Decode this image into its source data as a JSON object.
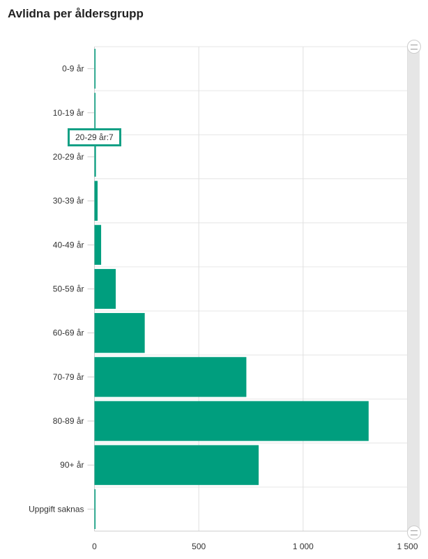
{
  "chart_data": {
    "type": "bar",
    "orientation": "horizontal",
    "title": "Avlidna per åldersgrupp",
    "categories": [
      "0-9 år",
      "10-19 år",
      "20-29 år",
      "30-39 år",
      "40-49 år",
      "50-59 år",
      "60-69 år",
      "70-79 år",
      "80-89 år",
      "90+ år",
      "Uppgift saknas"
    ],
    "values": [
      1,
      0,
      7,
      15,
      32,
      102,
      241,
      728,
      1314,
      787,
      1
    ],
    "xlim": [
      0,
      1500
    ],
    "xticks": [
      0,
      500,
      1000,
      1500
    ],
    "xtick_labels": [
      "0",
      "500",
      "1 000",
      "1 500"
    ],
    "grid": true,
    "bar_color": "#009e7e",
    "tooltip": {
      "category_index": 2,
      "text": "20-29 år:7"
    }
  }
}
